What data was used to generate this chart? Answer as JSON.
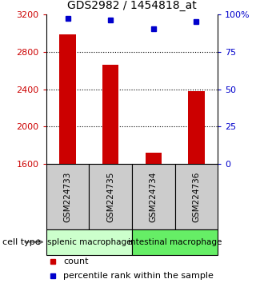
{
  "title": "GDS2982 / 1454818_at",
  "samples": [
    "GSM224733",
    "GSM224735",
    "GSM224734",
    "GSM224736"
  ],
  "counts": [
    2980,
    2660,
    1720,
    2380
  ],
  "percentiles": [
    97,
    96,
    90,
    95
  ],
  "ylim_left": [
    1600,
    3200
  ],
  "ylim_right": [
    0,
    100
  ],
  "yticks_left": [
    1600,
    2000,
    2400,
    2800,
    3200
  ],
  "yticks_right": [
    0,
    25,
    50,
    75,
    100
  ],
  "ytick_labels_right": [
    "0",
    "25",
    "50",
    "75",
    "100%"
  ],
  "bar_color": "#cc0000",
  "dot_color": "#0000cc",
  "grid_color": "#000000",
  "cell_types": [
    {
      "label": "splenic macrophage",
      "samples": [
        0,
        1
      ],
      "color": "#ccffcc"
    },
    {
      "label": "intestinal macrophage",
      "samples": [
        2,
        3
      ],
      "color": "#66ee66"
    }
  ],
  "sample_box_color": "#cccccc",
  "legend_count_color": "#cc0000",
  "legend_dot_color": "#0000cc",
  "cell_type_label": "cell type"
}
